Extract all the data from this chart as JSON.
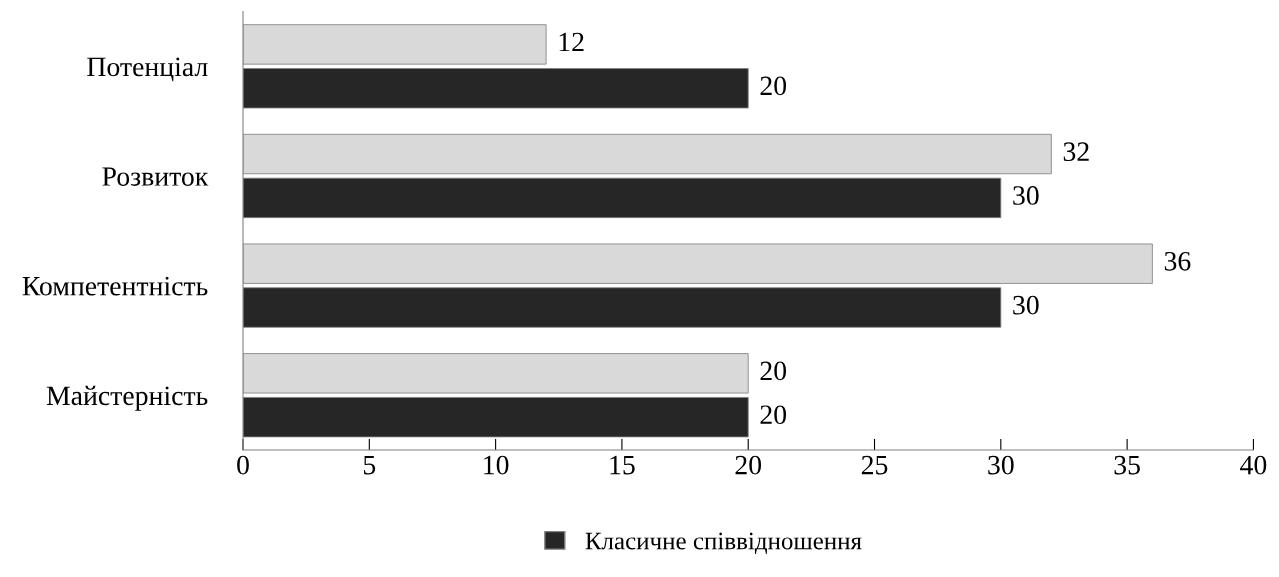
{
  "chart_data": {
    "type": "bar",
    "orientation": "horizontal",
    "categories": [
      "Потенціал",
      "Розвиток",
      "Компетентність",
      "Майстерність"
    ],
    "series": [
      {
        "color": "#d9d9d9",
        "values": [
          12,
          32,
          36,
          20
        ]
      },
      {
        "name": "Класичне співвідношення",
        "color": "#262626",
        "values": [
          20,
          30,
          30,
          20
        ]
      }
    ],
    "xlim": [
      0,
      40
    ],
    "xticks": [
      0,
      5,
      10,
      15,
      20,
      25,
      30,
      35,
      40
    ],
    "data_labels": true,
    "grid": false,
    "legend": "bottom"
  }
}
